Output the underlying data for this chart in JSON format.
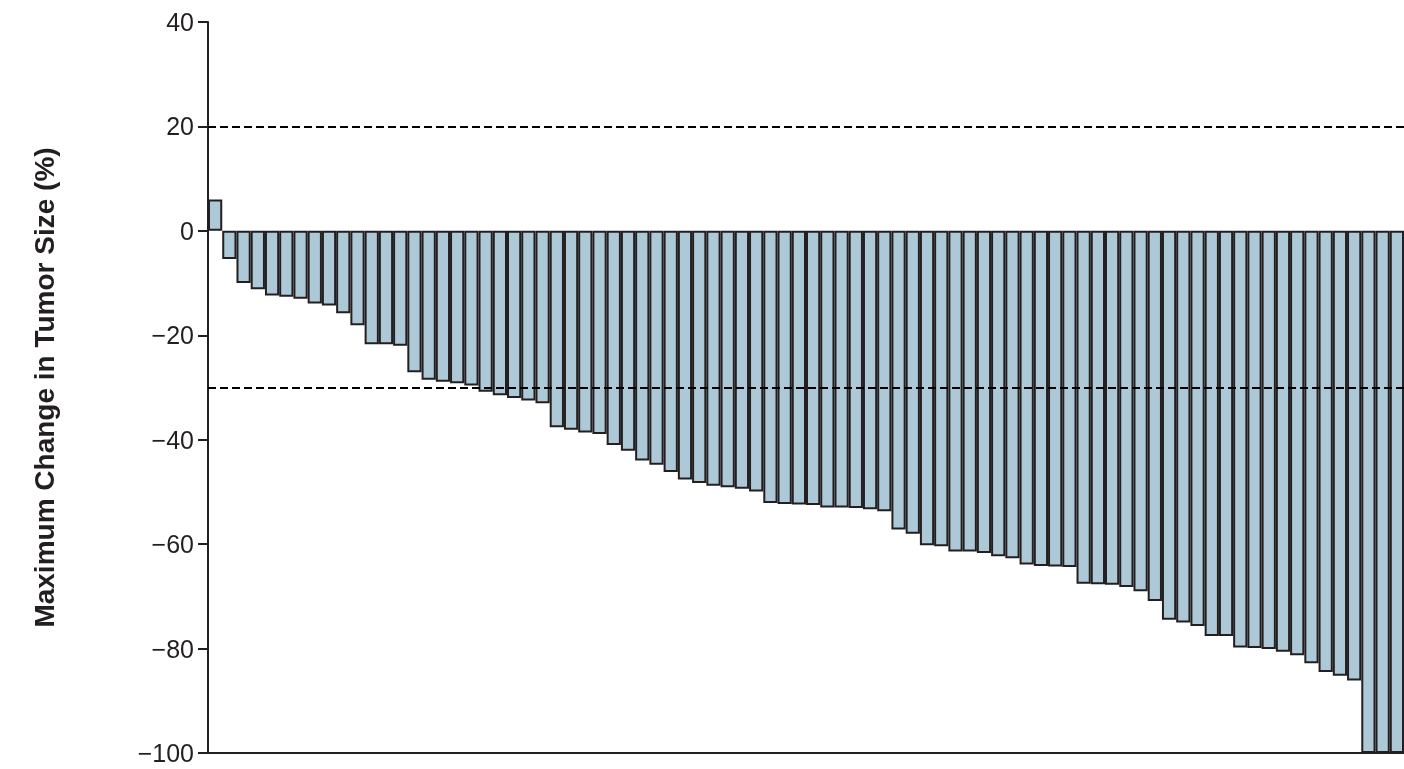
{
  "chart_data": {
    "type": "bar",
    "ylabel": "Maximum Change in Tumor Size (%)",
    "categories": [
      null,
      null,
      null,
      null,
      null,
      null,
      null,
      null,
      null,
      null,
      null,
      null,
      null,
      null,
      null,
      null,
      null,
      null,
      null,
      null,
      null,
      null,
      null,
      null,
      null,
      null,
      null,
      null,
      null,
      null,
      null,
      null,
      null,
      null,
      null,
      null,
      null,
      null,
      null,
      null,
      null,
      null,
      null,
      null,
      null,
      null,
      null,
      null,
      null,
      null,
      null,
      null,
      null,
      null,
      null,
      null,
      null,
      null,
      null,
      null,
      null,
      null,
      null,
      null,
      null,
      null,
      null,
      null,
      null,
      null,
      null,
      null,
      null,
      null,
      null,
      null,
      null,
      null,
      null,
      null,
      null,
      null,
      null,
      null
    ],
    "values": [
      6,
      -5.4,
      -10,
      -11.2,
      -12.4,
      -12.6,
      -13,
      -13.9,
      -14.3,
      -15.8,
      -18.1,
      -21.7,
      -21.7,
      -22,
      -27.1,
      -28.5,
      -28.9,
      -29.2,
      -29.6,
      -30.8,
      -31.5,
      -32,
      -32.5,
      -33,
      -37.6,
      -38.1,
      -38.6,
      -38.9,
      -41,
      -42.1,
      -44,
      -44.8,
      -46.2,
      -47.6,
      -48.3,
      -48.8,
      -49.1,
      -49.4,
      -49.9,
      -52.1,
      -52.3,
      -52.4,
      -52.5,
      -53,
      -53,
      -53.1,
      -53.3,
      -53.7,
      -57.2,
      -58,
      -60.2,
      -60.4,
      -61.4,
      -61.4,
      -61.7,
      -62.3,
      -62.7,
      -63.9,
      -64.2,
      -64.3,
      -64.4,
      -67.6,
      -67.7,
      -67.8,
      -68.2,
      -69,
      -70.9,
      -74.5,
      -75,
      -75.7,
      -77.6,
      -77.6,
      -79.8,
      -79.9,
      -80.1,
      -80.6,
      -81.3,
      -82.8,
      -84.5,
      -85.2,
      -86.1,
      -100,
      -100,
      -100
    ],
    "color": "#adc9d8",
    "ylim": [
      -100,
      40
    ],
    "yticks": [
      {
        "value": -100,
        "label": "−100"
      },
      {
        "value": -80,
        "label": "−80"
      },
      {
        "value": -60,
        "label": "−60"
      },
      {
        "value": -40,
        "label": "−40"
      },
      {
        "value": -20,
        "label": "−20"
      },
      0,
      20,
      40
    ],
    "ref_lines": [
      {
        "axis": "y",
        "value": 20,
        "color": "#000000",
        "line_style": "dashed"
      },
      {
        "axis": "y",
        "value": -30,
        "color": "#000000",
        "line_style": "dashed"
      }
    ],
    "grid": false,
    "tick_labels": "y"
  }
}
